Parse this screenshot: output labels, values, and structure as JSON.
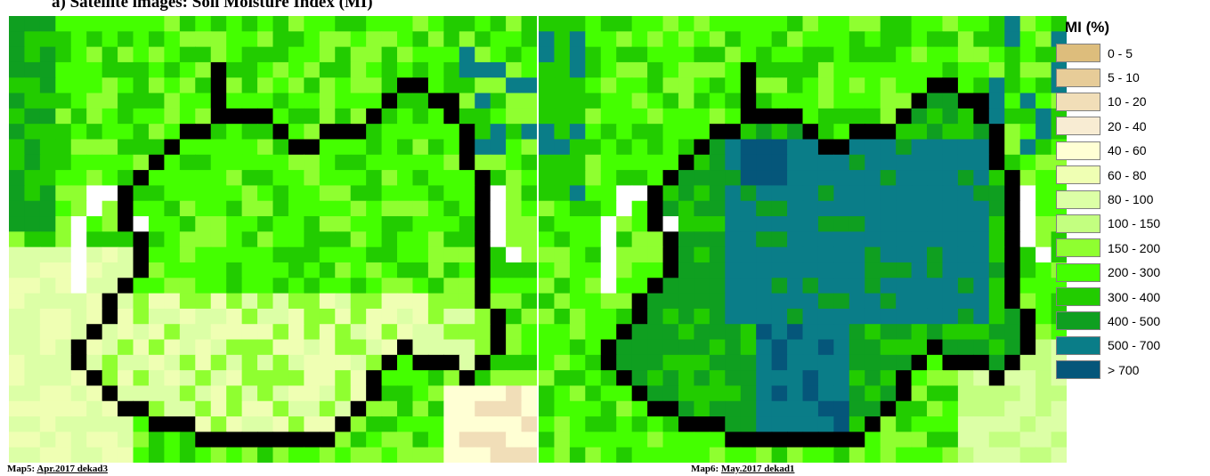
{
  "header": {
    "text": "a)   Satellite images: Soil Moisture Index (MI)"
  },
  "maps": [
    {
      "label": "Map5:",
      "date": "Apr.2017 dekad3"
    },
    {
      "label": "Map6:",
      "date": "May.2017 dekad1"
    }
  ],
  "legend": {
    "title": "MI (%)",
    "items": [
      {
        "label": "0 - 5",
        "color": "#ddbd7c"
      },
      {
        "label": "5 - 10",
        "color": "#e7cc98"
      },
      {
        "label": "10 - 20",
        "color": "#f1deb8"
      },
      {
        "label": "20 - 40",
        "color": "#f8ecd3"
      },
      {
        "label": "40 - 60",
        "color": "#ffffd4"
      },
      {
        "label": "60 - 80",
        "color": "#efffb3"
      },
      {
        "label": "80 - 100",
        "color": "#dcffa6"
      },
      {
        "label": "100 - 150",
        "color": "#c3ff80"
      },
      {
        "label": "150 - 200",
        "color": "#8fff30"
      },
      {
        "label": "200 - 300",
        "color": "#44ff00"
      },
      {
        "label": "300 - 400",
        "color": "#22cc00"
      },
      {
        "label": "400 - 500",
        "color": "#0f9f20"
      },
      {
        "label": "500 - 700",
        "color": "#0a7d88"
      },
      {
        "label": "> 700",
        "color": "#05567a"
      }
    ],
    "outline_color": "#000000",
    "nodata_color": "#ffffff"
  }
}
